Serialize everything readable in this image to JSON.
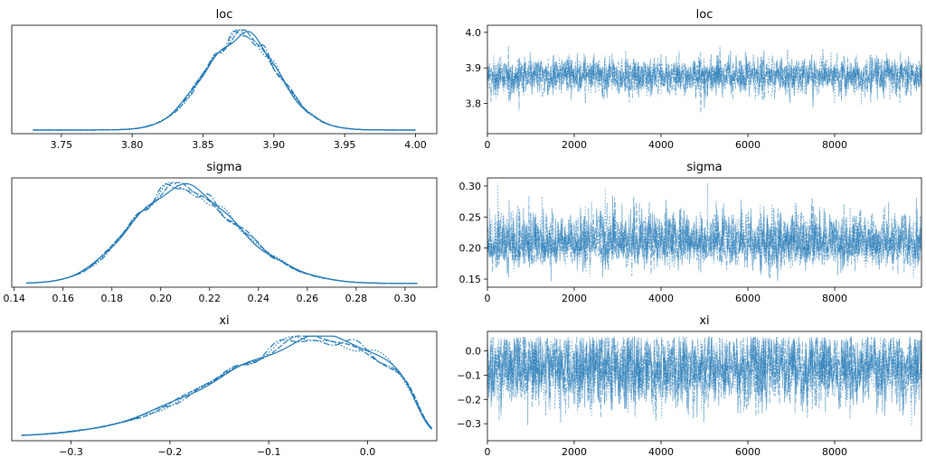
{
  "chart_data": [
    {
      "type": "line",
      "kind": "density",
      "title": "loc",
      "xlim": [
        3.715,
        4.015
      ],
      "xticks": [
        "3.75",
        "3.80",
        "3.85",
        "3.90",
        "3.95",
        "4.00"
      ],
      "xtick_values": [
        3.75,
        3.8,
        3.85,
        3.9,
        3.95,
        4.0
      ],
      "yticks": [],
      "mean": 3.877,
      "sd": 0.026,
      "range": [
        3.73,
        4.0
      ],
      "chains": 4,
      "color": "#1f77b4"
    },
    {
      "type": "line",
      "kind": "trace",
      "title": "loc",
      "xlim": [
        0,
        10000
      ],
      "ylim": [
        3.715,
        4.02
      ],
      "xticks": [
        "0",
        "2000",
        "4000",
        "6000",
        "8000"
      ],
      "xtick_values": [
        0,
        2000,
        4000,
        6000,
        8000
      ],
      "yticks": [
        "3.8",
        "3.9",
        "4.0"
      ],
      "ytick_values": [
        3.8,
        3.9,
        4.0
      ],
      "mean": 3.877,
      "sd": 0.026,
      "range": [
        3.73,
        4.0
      ],
      "chains": 4,
      "color": "#1f77b4"
    },
    {
      "type": "line",
      "kind": "density",
      "title": "sigma",
      "xlim": [
        0.139,
        0.313
      ],
      "xticks": [
        "0.14",
        "0.16",
        "0.18",
        "0.20",
        "0.22",
        "0.24",
        "0.26",
        "0.28",
        "0.30"
      ],
      "xtick_values": [
        0.14,
        0.16,
        0.18,
        0.2,
        0.22,
        0.24,
        0.26,
        0.28,
        0.3
      ],
      "yticks": [],
      "mean": 0.206,
      "sd": 0.022,
      "range": [
        0.145,
        0.305
      ],
      "chains": 4,
      "color": "#1f77b4"
    },
    {
      "type": "line",
      "kind": "trace",
      "title": "sigma",
      "xlim": [
        0,
        10000
      ],
      "ylim": [
        0.137,
        0.313
      ],
      "xticks": [
        "0",
        "2000",
        "4000",
        "6000",
        "8000"
      ],
      "xtick_values": [
        0,
        2000,
        4000,
        6000,
        8000
      ],
      "yticks": [
        "0.15",
        "0.20",
        "0.25",
        "0.30"
      ],
      "ytick_values": [
        0.15,
        0.2,
        0.25,
        0.3
      ],
      "mean": 0.206,
      "sd": 0.022,
      "range": [
        0.145,
        0.305
      ],
      "chains": 4,
      "color": "#1f77b4"
    },
    {
      "type": "line",
      "kind": "density",
      "title": "xi",
      "xlim": [
        -0.36,
        0.07
      ],
      "xticks": [
        "−0.3",
        "−0.2",
        "−0.1",
        "0.0"
      ],
      "xtick_values": [
        -0.3,
        -0.2,
        -0.1,
        0.0
      ],
      "yticks": [],
      "mean": -0.07,
      "sd": 0.09,
      "range": [
        -0.35,
        0.065
      ],
      "chains": 4,
      "color": "#1f77b4"
    },
    {
      "type": "line",
      "kind": "trace",
      "title": "xi",
      "xlim": [
        0,
        10000
      ],
      "ylim": [
        -0.37,
        0.08
      ],
      "xticks": [
        "0",
        "2000",
        "4000",
        "6000",
        "8000"
      ],
      "xtick_values": [
        0,
        2000,
        4000,
        6000,
        8000
      ],
      "yticks": [
        "−0.3",
        "−0.2",
        "−0.1",
        "0.0"
      ],
      "ytick_values": [
        -0.3,
        -0.2,
        -0.1,
        0.0
      ],
      "mean": -0.07,
      "sd": 0.09,
      "range": [
        -0.35,
        0.065
      ],
      "chains": 4,
      "color": "#1f77b4"
    }
  ]
}
